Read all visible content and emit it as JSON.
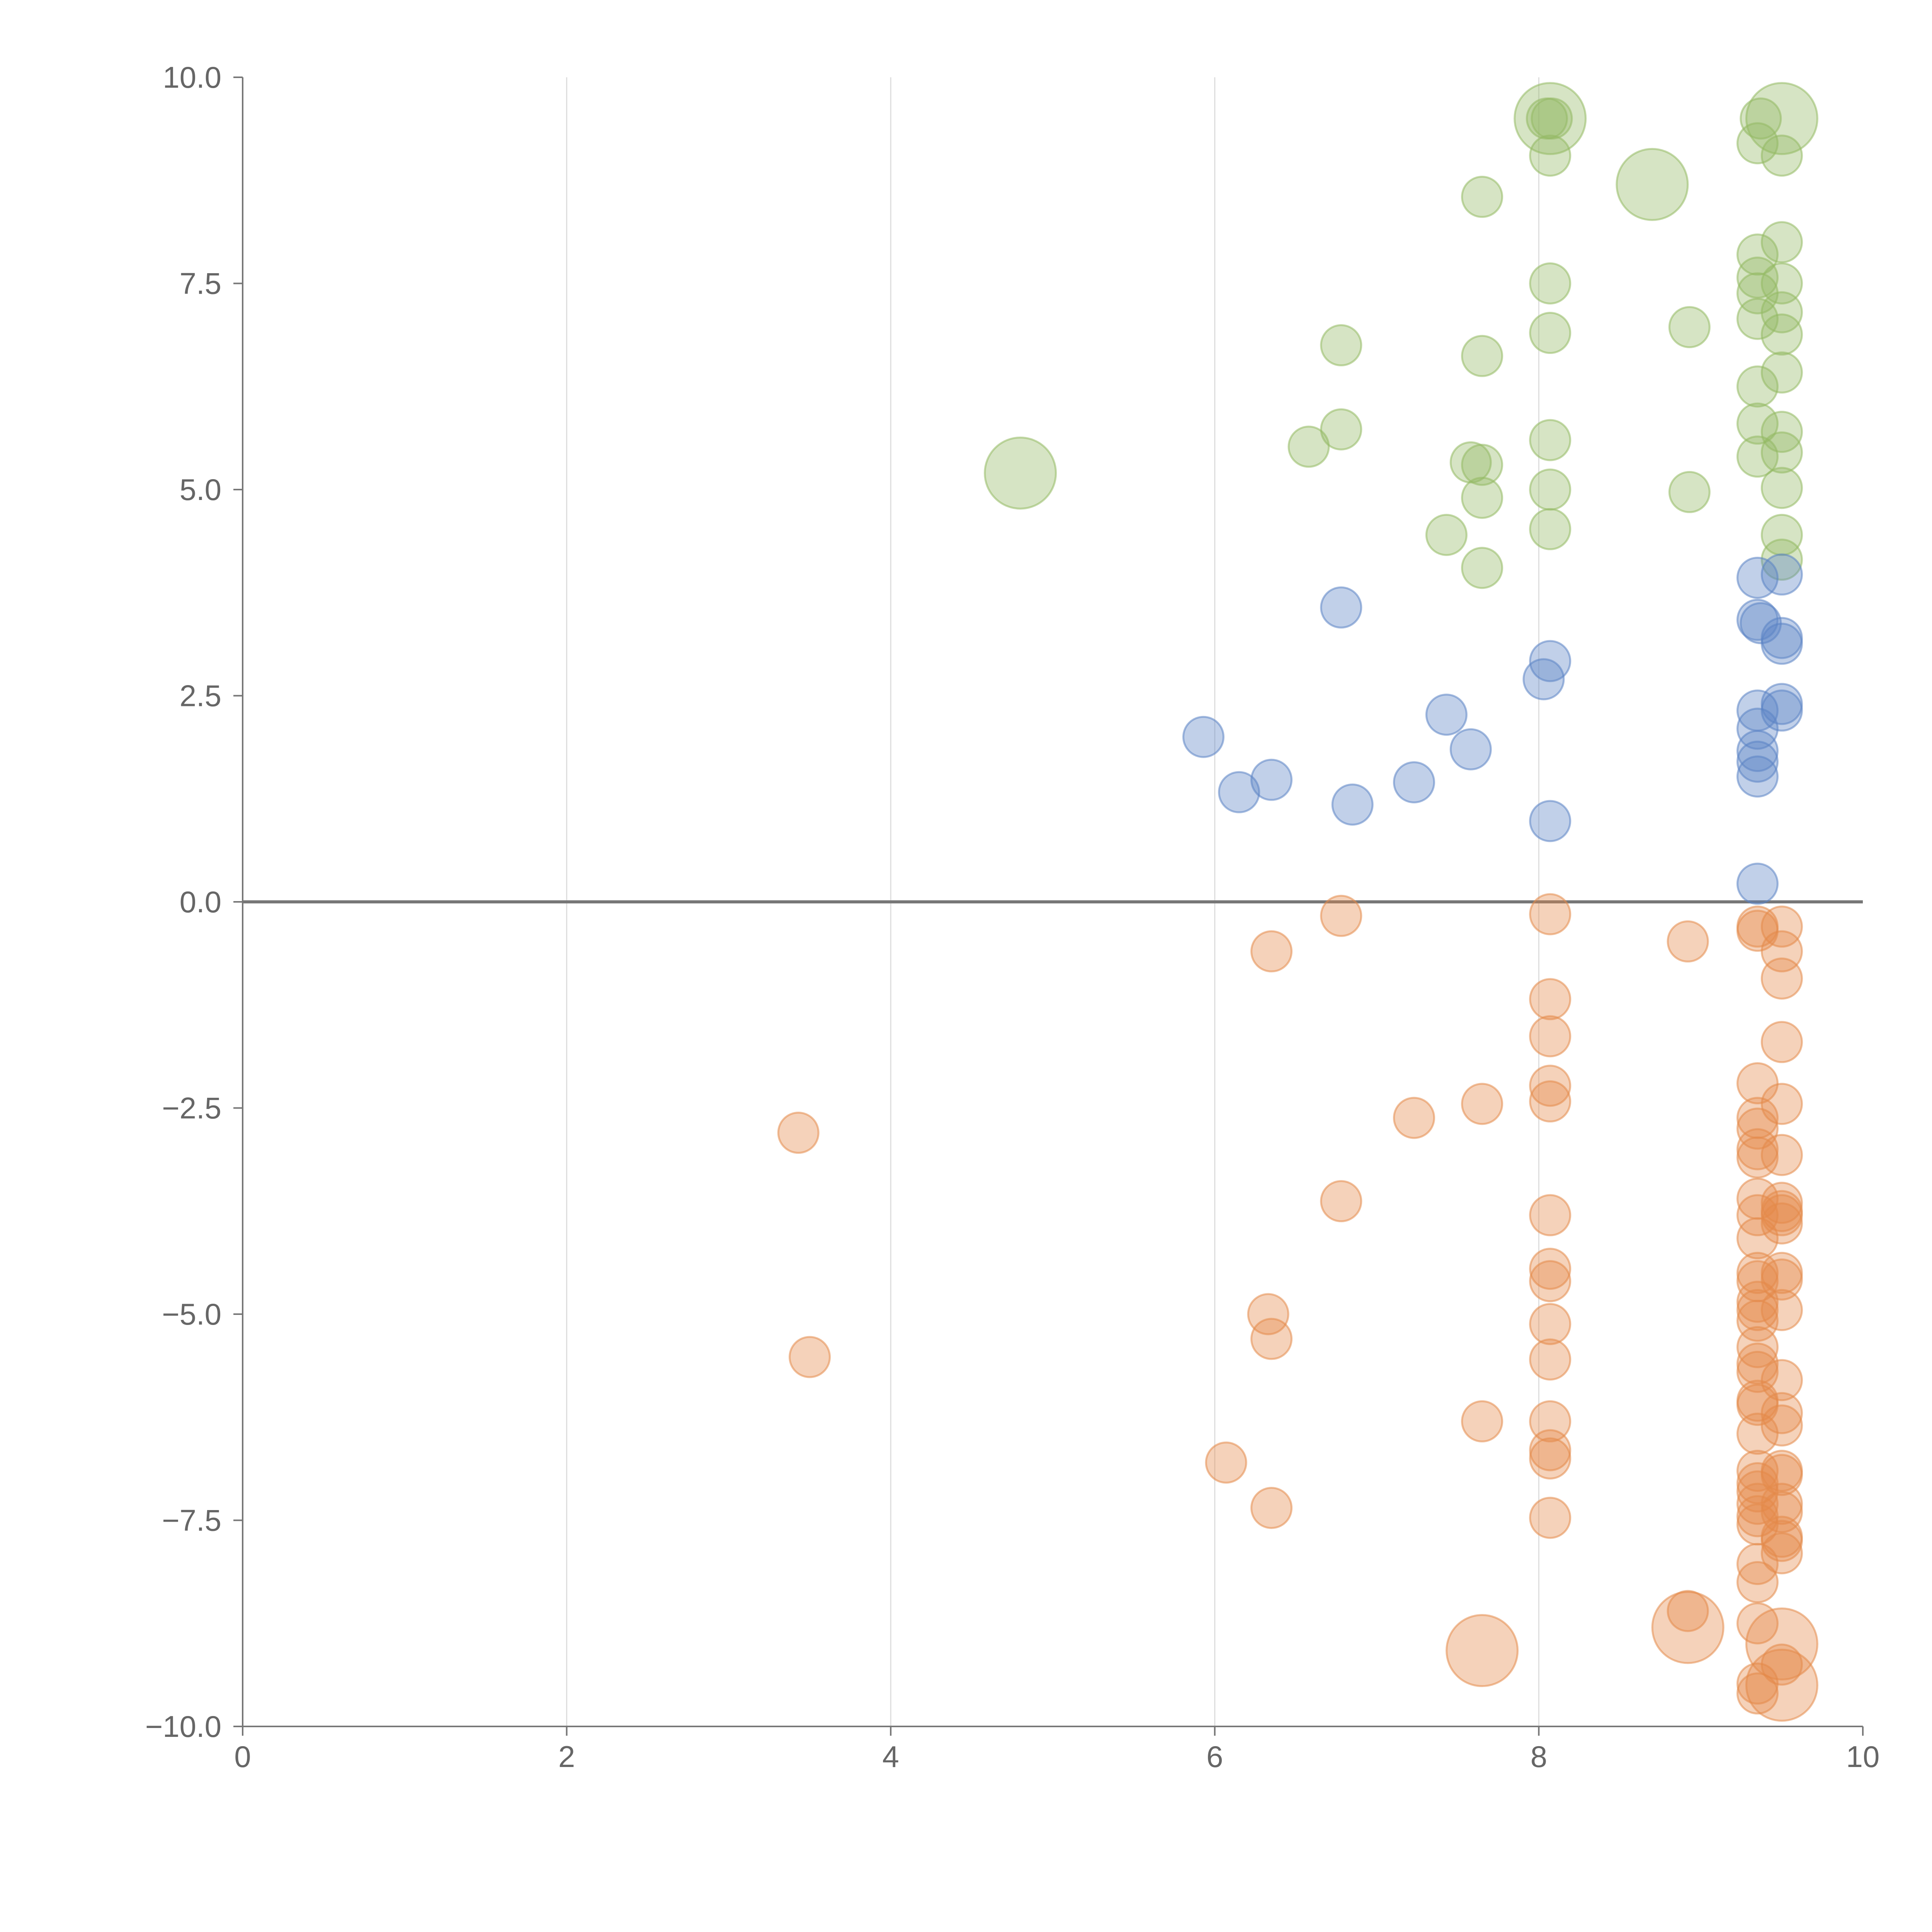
{
  "chart_data": {
    "type": "scatter",
    "title": "",
    "xlabel": "",
    "ylabel": "",
    "xlim": [
      0,
      10
    ],
    "ylim": [
      -10,
      10
    ],
    "grid": "vertical",
    "legend": "none",
    "x_ticks": [
      "0",
      "2",
      "4",
      "6",
      "8",
      "10"
    ],
    "y_ticks": [
      "10.0",
      "7.5",
      "5.0",
      "2.5",
      "0.0",
      "−2.5",
      "−5.0",
      "−7.5",
      "−10.0"
    ],
    "colors": {
      "green": "#93b963",
      "blue": "#5b84c4",
      "orange": "#e48a4a",
      "zero_line": "#777777",
      "axis": "#777777",
      "grid": "#dddddd",
      "tick_text": "#666666"
    },
    "series": [
      {
        "color": "green",
        "points": [
          [
            8.05,
            9.5
          ],
          [
            8.08,
            9.5
          ],
          [
            8.07,
            9.05
          ],
          [
            7.65,
            8.55
          ],
          [
            8.07,
            7.5
          ],
          [
            8.07,
            6.9
          ],
          [
            6.78,
            6.75
          ],
          [
            7.65,
            6.62
          ],
          [
            6.78,
            5.73
          ],
          [
            6.58,
            5.52
          ],
          [
            8.07,
            5.6
          ],
          [
            7.58,
            5.33
          ],
          [
            7.65,
            5.3
          ],
          [
            7.65,
            4.9
          ],
          [
            8.07,
            5.0
          ],
          [
            7.43,
            4.45
          ],
          [
            8.07,
            4.52
          ],
          [
            7.65,
            4.05
          ],
          [
            8.93,
            6.97
          ],
          [
            8.93,
            4.97
          ],
          [
            9.37,
            9.5
          ],
          [
            9.35,
            9.2
          ],
          [
            9.35,
            7.85
          ],
          [
            9.35,
            7.57
          ],
          [
            9.35,
            7.38
          ],
          [
            9.35,
            7.07
          ],
          [
            9.35,
            6.25
          ],
          [
            9.35,
            5.8
          ],
          [
            9.35,
            5.4
          ],
          [
            9.5,
            9.05
          ],
          [
            9.5,
            8.0
          ],
          [
            9.5,
            7.5
          ],
          [
            9.5,
            7.15
          ],
          [
            9.5,
            6.88
          ],
          [
            9.5,
            6.42
          ],
          [
            9.5,
            5.7
          ],
          [
            9.5,
            5.45
          ],
          [
            9.5,
            5.02
          ],
          [
            9.5,
            4.45
          ],
          [
            9.5,
            4.15
          ]
        ],
        "large_points": [
          [
            8.07,
            9.5
          ],
          [
            8.7,
            8.7
          ],
          [
            9.5,
            9.5
          ],
          [
            4.8,
            5.2
          ]
        ]
      },
      {
        "color": "blue",
        "points": [
          [
            6.78,
            3.57
          ],
          [
            8.07,
            2.92
          ],
          [
            8.03,
            2.7
          ],
          [
            7.43,
            2.27
          ],
          [
            7.58,
            1.85
          ],
          [
            5.93,
            2.0
          ],
          [
            6.15,
            1.33
          ],
          [
            6.35,
            1.48
          ],
          [
            7.23,
            1.45
          ],
          [
            6.85,
            1.18
          ],
          [
            8.07,
            0.98
          ],
          [
            9.35,
            3.93
          ],
          [
            9.35,
            3.42
          ],
          [
            9.37,
            3.38
          ],
          [
            9.35,
            2.32
          ],
          [
            9.35,
            2.1
          ],
          [
            9.35,
            1.83
          ],
          [
            9.35,
            1.7
          ],
          [
            9.35,
            1.52
          ],
          [
            9.35,
            0.22
          ],
          [
            9.5,
            3.97
          ],
          [
            9.5,
            3.2
          ],
          [
            9.5,
            3.13
          ],
          [
            9.5,
            2.4
          ],
          [
            9.5,
            2.32
          ]
        ],
        "large_points": []
      },
      {
        "color": "orange",
        "points": [
          [
            6.78,
            -0.17
          ],
          [
            6.35,
            -0.6
          ],
          [
            8.07,
            -0.15
          ],
          [
            8.07,
            -1.18
          ],
          [
            8.07,
            -1.63
          ],
          [
            8.07,
            -2.23
          ],
          [
            8.07,
            -2.42
          ],
          [
            7.65,
            -2.45
          ],
          [
            7.23,
            -2.62
          ],
          [
            3.43,
            -2.8
          ],
          [
            6.78,
            -3.63
          ],
          [
            8.07,
            -3.8
          ],
          [
            8.07,
            -4.45
          ],
          [
            8.07,
            -4.6
          ],
          [
            6.33,
            -5.0
          ],
          [
            6.35,
            -5.3
          ],
          [
            3.5,
            -5.52
          ],
          [
            8.07,
            -5.12
          ],
          [
            8.07,
            -5.55
          ],
          [
            7.65,
            -6.3
          ],
          [
            8.07,
            -6.3
          ],
          [
            8.07,
            -6.65
          ],
          [
            8.07,
            -6.75
          ],
          [
            6.07,
            -6.8
          ],
          [
            6.35,
            -7.35
          ],
          [
            8.07,
            -7.47
          ],
          [
            8.92,
            -0.48
          ],
          [
            8.92,
            -8.6
          ],
          [
            9.35,
            -0.35
          ],
          [
            9.35,
            -0.3
          ],
          [
            9.35,
            -2.2
          ],
          [
            9.35,
            -2.62
          ],
          [
            9.35,
            -2.75
          ],
          [
            9.35,
            -3.0
          ],
          [
            9.35,
            -3.1
          ],
          [
            9.35,
            -3.6
          ],
          [
            9.35,
            -3.8
          ],
          [
            9.35,
            -4.08
          ],
          [
            9.35,
            -4.5
          ],
          [
            9.35,
            -4.6
          ],
          [
            9.35,
            -4.85
          ],
          [
            9.35,
            -4.95
          ],
          [
            9.35,
            -5.08
          ],
          [
            9.35,
            -5.4
          ],
          [
            9.35,
            -5.6
          ],
          [
            9.35,
            -5.7
          ],
          [
            9.35,
            -6.05
          ],
          [
            9.35,
            -6.1
          ],
          [
            9.35,
            -6.45
          ],
          [
            9.35,
            -6.9
          ],
          [
            9.35,
            -7.05
          ],
          [
            9.35,
            -7.15
          ],
          [
            9.35,
            -7.3
          ],
          [
            9.35,
            -7.45
          ],
          [
            9.35,
            -7.55
          ],
          [
            9.35,
            -8.03
          ],
          [
            9.35,
            -8.25
          ],
          [
            9.35,
            -8.75
          ],
          [
            9.35,
            -9.48
          ],
          [
            9.35,
            -9.6
          ],
          [
            9.5,
            -0.3
          ],
          [
            9.5,
            -0.6
          ],
          [
            9.5,
            -0.93
          ],
          [
            9.5,
            -1.7
          ],
          [
            9.5,
            -2.45
          ],
          [
            9.5,
            -3.07
          ],
          [
            9.5,
            -3.65
          ],
          [
            9.5,
            -3.75
          ],
          [
            9.5,
            -3.8
          ],
          [
            9.5,
            -3.9
          ],
          [
            9.5,
            -4.5
          ],
          [
            9.5,
            -4.58
          ],
          [
            9.5,
            -4.95
          ],
          [
            9.5,
            -5.8
          ],
          [
            9.5,
            -6.2
          ],
          [
            9.5,
            -6.35
          ],
          [
            9.5,
            -6.9
          ],
          [
            9.5,
            -6.95
          ],
          [
            9.5,
            -7.3
          ],
          [
            9.5,
            -7.4
          ],
          [
            9.5,
            -7.7
          ],
          [
            9.5,
            -7.75
          ],
          [
            9.5,
            -7.9
          ],
          [
            9.5,
            -9.25
          ]
        ],
        "large_points": [
          [
            7.65,
            -9.08
          ],
          [
            8.92,
            -8.8
          ],
          [
            9.5,
            -9.0
          ],
          [
            9.5,
            -9.5
          ]
        ]
      }
    ]
  }
}
